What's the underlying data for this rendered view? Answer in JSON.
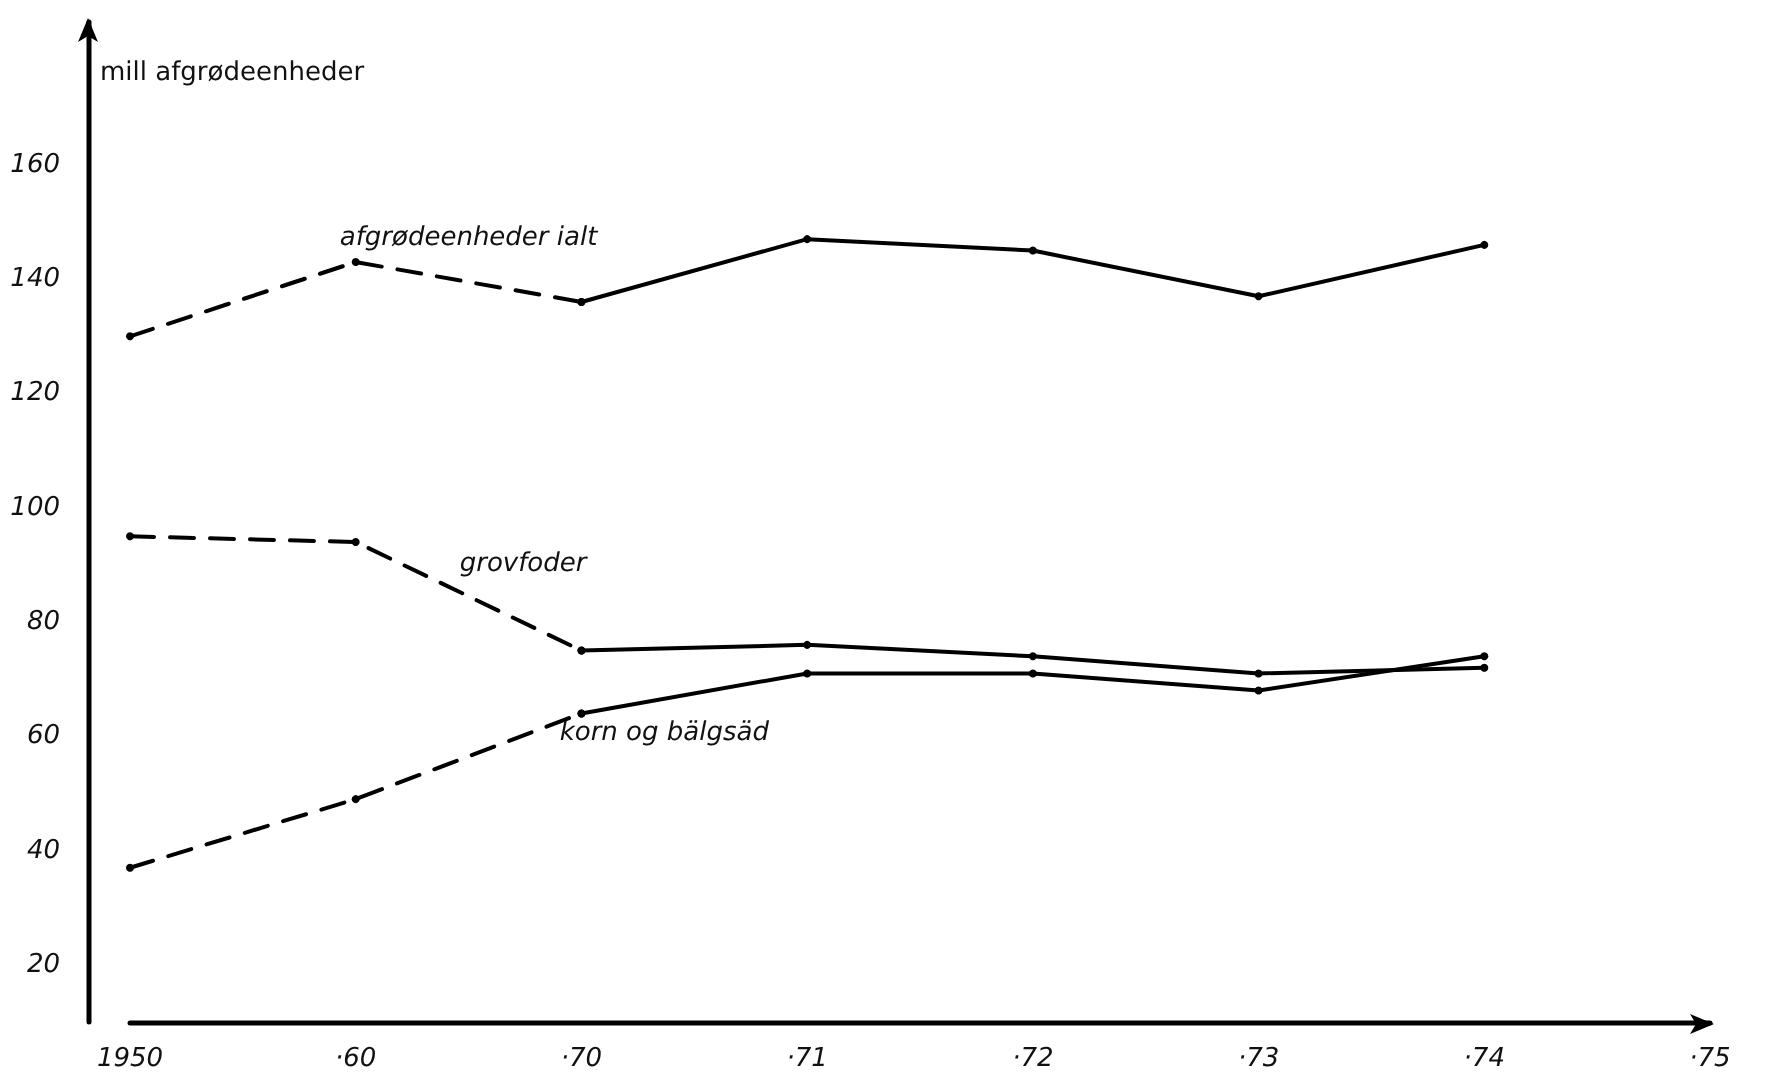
{
  "chart_data": {
    "type": "line",
    "ylabel": "mill afgrødeenheder",
    "categories": [
      "1950",
      "·60",
      "·70",
      "·71",
      "·72",
      "·73",
      "·74",
      "·75"
    ],
    "series": [
      {
        "name": "afgrødeenheder ialt",
        "color": "#000000",
        "line_style": "dashed",
        "values": [
          130,
          143,
          136,
          null,
          null,
          null,
          null,
          null
        ]
      },
      {
        "color": "#000000",
        "line_style": "solid",
        "values": [
          null,
          null,
          136,
          147,
          145,
          137,
          146,
          null
        ]
      },
      {
        "name": "grovfoder",
        "color": "#000000",
        "line_style": "dashed",
        "values": [
          95,
          94,
          75,
          null,
          null,
          null,
          null,
          null
        ]
      },
      {
        "color": "#000000",
        "line_style": "solid",
        "values": [
          null,
          null,
          75,
          76,
          74,
          71,
          72,
          null
        ]
      },
      {
        "name": "korn og bälgsäd",
        "color": "#000000",
        "line_style": "dashed",
        "values": [
          37,
          49,
          64,
          null,
          null,
          null,
          null,
          null
        ]
      },
      {
        "color": "#000000",
        "line_style": "solid",
        "values": [
          null,
          null,
          64,
          71,
          71,
          68,
          74,
          null
        ]
      }
    ],
    "ylim": [
      10,
      185
    ],
    "yticks": [
      20,
      40,
      60,
      80,
      100,
      120,
      140,
      160
    ],
    "grid": false,
    "legend": false,
    "marker": "circle"
  }
}
